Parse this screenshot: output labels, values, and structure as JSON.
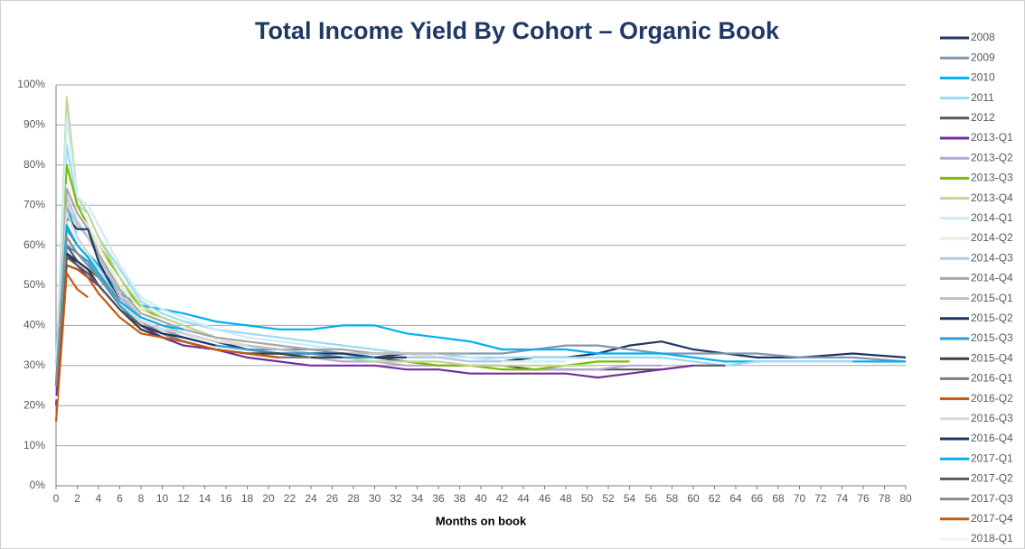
{
  "chart_data": {
    "type": "line",
    "title": "Total Income Yield By Cohort – Organic Book",
    "xlabel": "Months on book",
    "x": [
      0,
      1,
      2,
      3,
      4,
      6,
      8,
      10,
      12,
      15,
      18,
      21,
      24,
      27,
      30,
      33,
      36,
      39,
      42,
      45,
      48,
      51,
      54,
      57,
      60,
      63,
      66,
      70,
      75,
      80
    ],
    "xlim": [
      0,
      80
    ],
    "xticks": [
      0,
      2,
      4,
      6,
      8,
      10,
      12,
      14,
      16,
      18,
      20,
      22,
      24,
      26,
      28,
      30,
      32,
      34,
      36,
      38,
      40,
      42,
      44,
      46,
      48,
      50,
      52,
      54,
      56,
      58,
      60,
      62,
      64,
      66,
      68,
      70,
      72,
      74,
      76,
      78,
      80
    ],
    "ylim": [
      0,
      100
    ],
    "yticks": [
      {
        "value": 0,
        "label": "0%"
      },
      {
        "value": 10,
        "label": "10%"
      },
      {
        "value": 20,
        "label": "20%"
      },
      {
        "value": 30,
        "label": "30%"
      },
      {
        "value": 40,
        "label": "40%"
      },
      {
        "value": 50,
        "label": "50%"
      },
      {
        "value": 60,
        "label": "60%"
      },
      {
        "value": 70,
        "label": "70%"
      },
      {
        "value": 80,
        "label": "80%"
      },
      {
        "value": 90,
        "label": "90%"
      },
      {
        "value": 100,
        "label": "100%"
      }
    ],
    "grid": true,
    "legend": "right",
    "series": [
      {
        "name": "2008",
        "color": "#1f3864",
        "values": [
          25,
          55,
          54,
          52,
          50,
          44,
          39,
          37,
          36,
          34,
          33,
          33,
          33,
          33,
          32,
          33,
          32,
          32,
          31,
          32,
          32,
          33,
          35,
          36,
          34,
          33,
          32,
          32,
          33,
          32
        ]
      },
      {
        "name": "2009",
        "color": "#8497b0",
        "values": [
          25,
          62,
          58,
          55,
          52,
          46,
          41,
          39,
          37,
          35,
          34,
          34,
          34,
          33,
          33,
          33,
          33,
          33,
          33,
          34,
          35,
          35,
          34,
          33,
          33,
          33,
          33,
          32,
          32,
          31
        ]
      },
      {
        "name": "2010",
        "color": "#00b0f0",
        "values": [
          30,
          70,
          62,
          58,
          55,
          48,
          45,
          44,
          43,
          41,
          40,
          39,
          39,
          40,
          40,
          38,
          37,
          36,
          34,
          34,
          34,
          33,
          33,
          33,
          32,
          31,
          31,
          31,
          31,
          31
        ]
      },
      {
        "name": "2011",
        "color": "#9dd9f3",
        "values": [
          30,
          85,
          70,
          68,
          62,
          54,
          46,
          43,
          41,
          39,
          38,
          37,
          36,
          35,
          34,
          33,
          33,
          32,
          32,
          32,
          32,
          32,
          32,
          32,
          31,
          30,
          31,
          31,
          31,
          null
        ]
      },
      {
        "name": "2012",
        "color": "#595959",
        "values": [
          25,
          60,
          56,
          54,
          52,
          46,
          41,
          38,
          36,
          34,
          33,
          32,
          32,
          32,
          32,
          31,
          30,
          30,
          30,
          29,
          29,
          29,
          29,
          29,
          30,
          30,
          null,
          null,
          null,
          null
        ]
      },
      {
        "name": "2013-Q1",
        "color": "#7030a0",
        "values": [
          20,
          58,
          55,
          52,
          50,
          44,
          40,
          37,
          35,
          34,
          32,
          31,
          30,
          30,
          30,
          29,
          29,
          28,
          28,
          28,
          28,
          27,
          28,
          29,
          30,
          null,
          null,
          null,
          null,
          null
        ]
      },
      {
        "name": "2013-Q2",
        "color": "#b4a7d6",
        "values": [
          25,
          68,
          62,
          58,
          54,
          47,
          42,
          40,
          38,
          36,
          34,
          33,
          32,
          31,
          31,
          30,
          30,
          30,
          29,
          29,
          29,
          29,
          30,
          30,
          null,
          null,
          null,
          null,
          null,
          null
        ]
      },
      {
        "name": "2013-Q3",
        "color": "#7fba00",
        "values": [
          25,
          80,
          70,
          65,
          60,
          52,
          44,
          42,
          40,
          37,
          35,
          34,
          33,
          32,
          31,
          31,
          30,
          30,
          29,
          29,
          30,
          31,
          31,
          null,
          null,
          null,
          null,
          null,
          null,
          null
        ]
      },
      {
        "name": "2013-Q4",
        "color": "#c3d69b",
        "values": [
          25,
          97,
          72,
          68,
          62,
          52,
          45,
          42,
          40,
          37,
          35,
          34,
          33,
          32,
          31,
          31,
          31,
          30,
          30,
          30,
          30,
          30,
          null,
          null,
          null,
          null,
          null,
          null,
          null,
          null
        ]
      },
      {
        "name": "2014-Q1",
        "color": "#ccecf7",
        "values": [
          25,
          92,
          72,
          70,
          65,
          55,
          47,
          44,
          42,
          39,
          37,
          36,
          35,
          34,
          33,
          33,
          32,
          32,
          31,
          31,
          31,
          null,
          null,
          null,
          null,
          null,
          null,
          null,
          null,
          null
        ]
      },
      {
        "name": "2014-Q2",
        "color": "#e2efda",
        "values": [
          25,
          75,
          68,
          65,
          60,
          50,
          44,
          41,
          39,
          37,
          35,
          34,
          33,
          33,
          32,
          32,
          32,
          31,
          31,
          31,
          null,
          null,
          null,
          null,
          null,
          null,
          null,
          null,
          null,
          null
        ]
      },
      {
        "name": "2014-Q3",
        "color": "#b4c7e7",
        "values": [
          25,
          72,
          66,
          62,
          57,
          48,
          42,
          40,
          38,
          36,
          35,
          34,
          33,
          33,
          32,
          32,
          32,
          31,
          31,
          null,
          null,
          null,
          null,
          null,
          null,
          null,
          null,
          null,
          null,
          null
        ]
      },
      {
        "name": "2014-Q4",
        "color": "#a6a6a6",
        "values": [
          25,
          74,
          68,
          64,
          58,
          49,
          43,
          41,
          39,
          37,
          36,
          35,
          34,
          34,
          33,
          33,
          33,
          33,
          null,
          null,
          null,
          null,
          null,
          null,
          null,
          null,
          null,
          null,
          null,
          null
        ]
      },
      {
        "name": "2015-Q1",
        "color": "#bfbfbf",
        "values": [
          25,
          70,
          65,
          62,
          57,
          48,
          42,
          40,
          38,
          36,
          35,
          34,
          33,
          33,
          33,
          33,
          33,
          null,
          null,
          null,
          null,
          null,
          null,
          null,
          null,
          null,
          null,
          null,
          null,
          null
        ]
      },
      {
        "name": "2015-Q2",
        "color": "#1f3864",
        "values": [
          25,
          67,
          64,
          64,
          56,
          46,
          41,
          39,
          38,
          36,
          34,
          33,
          33,
          33,
          32,
          32,
          null,
          null,
          null,
          null,
          null,
          null,
          null,
          null,
          null,
          null,
          null,
          null,
          null,
          null
        ]
      },
      {
        "name": "2015-Q3",
        "color": "#2e9bd6",
        "values": [
          25,
          60,
          58,
          56,
          52,
          45,
          40,
          38,
          37,
          35,
          34,
          33,
          33,
          32,
          32,
          null,
          null,
          null,
          null,
          null,
          null,
          null,
          null,
          null,
          null,
          null,
          null,
          null,
          null,
          null
        ]
      },
      {
        "name": "2015-Q4",
        "color": "#404040",
        "values": [
          25,
          57,
          56,
          54,
          50,
          44,
          39,
          37,
          36,
          34,
          33,
          33,
          32,
          32,
          null,
          null,
          null,
          null,
          null,
          null,
          null,
          null,
          null,
          null,
          null,
          null,
          null,
          null,
          null,
          null
        ]
      },
      {
        "name": "2016-Q1",
        "color": "#7f7f7f",
        "values": [
          25,
          64,
          60,
          57,
          53,
          46,
          41,
          38,
          36,
          34,
          33,
          32,
          32,
          null,
          null,
          null,
          null,
          null,
          null,
          null,
          null,
          null,
          null,
          null,
          null,
          null,
          null,
          null,
          null,
          null
        ]
      },
      {
        "name": "2016-Q2",
        "color": "#c55a11",
        "values": [
          25,
          55,
          54,
          52,
          48,
          42,
          38,
          37,
          36,
          34,
          33,
          32,
          null,
          null,
          null,
          null,
          null,
          null,
          null,
          null,
          null,
          null,
          null,
          null,
          null,
          null,
          null,
          null,
          null,
          null
        ]
      },
      {
        "name": "2016-Q3",
        "color": "#d9d9d9",
        "values": [
          25,
          68,
          62,
          58,
          54,
          46,
          41,
          39,
          38,
          36,
          35,
          null,
          null,
          null,
          null,
          null,
          null,
          null,
          null,
          null,
          null,
          null,
          null,
          null,
          null,
          null,
          null,
          null,
          null,
          null
        ]
      },
      {
        "name": "2016-Q4",
        "color": "#203864",
        "values": [
          25,
          58,
          56,
          54,
          50,
          44,
          40,
          38,
          37,
          35,
          null,
          null,
          null,
          null,
          null,
          null,
          null,
          null,
          null,
          null,
          null,
          null,
          null,
          null,
          null,
          null,
          null,
          null,
          null,
          null
        ]
      },
      {
        "name": "2017-Q1",
        "color": "#00b0f0",
        "values": [
          25,
          65,
          60,
          57,
          53,
          46,
          42,
          40,
          39,
          null,
          null,
          null,
          null,
          null,
          null,
          null,
          null,
          null,
          null,
          null,
          null,
          null,
          null,
          null,
          null,
          null,
          null,
          null,
          null,
          null
        ]
      },
      {
        "name": "2017-Q2",
        "color": "#595959",
        "values": [
          25,
          57,
          55,
          53,
          50,
          44,
          40,
          null,
          null,
          null,
          null,
          null,
          null,
          null,
          null,
          null,
          null,
          null,
          null,
          null,
          null,
          null,
          null,
          null,
          null,
          null,
          null,
          null,
          null,
          null
        ]
      },
      {
        "name": "2017-Q3",
        "color": "#8c8c8c",
        "values": [
          25,
          62,
          58,
          55,
          52,
          46,
          null,
          null,
          null,
          null,
          null,
          null,
          null,
          null,
          null,
          null,
          null,
          null,
          null,
          null,
          null,
          null,
          null,
          null,
          null,
          null,
          null,
          null,
          null,
          null
        ]
      },
      {
        "name": "2017-Q4",
        "color": "#c55a11",
        "values": [
          16,
          53,
          49,
          47,
          null,
          null,
          null,
          null,
          null,
          null,
          null,
          null,
          null,
          null,
          null,
          null,
          null,
          null,
          null,
          null,
          null,
          null,
          null,
          null,
          null,
          null,
          null,
          null,
          null,
          null
        ]
      },
      {
        "name": "2018-Q1",
        "color": "#f2f2f2",
        "values": [
          22,
          null,
          null,
          null,
          null,
          null,
          null,
          null,
          null,
          null,
          null,
          null,
          null,
          null,
          null,
          null,
          null,
          null,
          null,
          null,
          null,
          null,
          null,
          null,
          null,
          null,
          null,
          null,
          null,
          null
        ]
      }
    ]
  }
}
